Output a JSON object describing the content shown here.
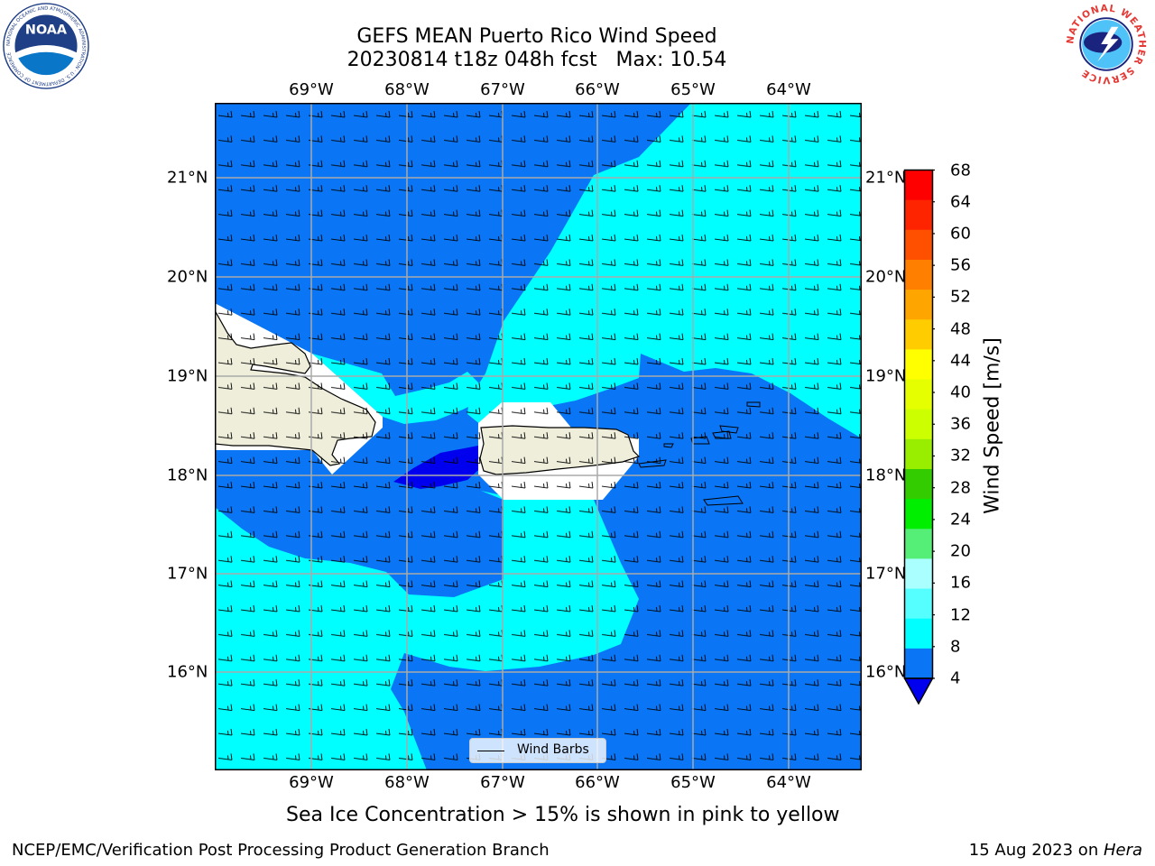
{
  "header": {
    "title_line1": "GEFS MEAN Puerto Rico Wind Speed",
    "title_line2": "20230814 t18z 048h fcst   Max: 10.54"
  },
  "logos": {
    "left": {
      "text": "NOAA",
      "ring_text": "NATIONAL OCEANIC AND ATMOSPHERIC ADMINISTRATION · U.S. DEPARTMENT OF COMMERCE"
    },
    "right": {
      "ring_text": "NATIONAL WEATHER SERVICE"
    }
  },
  "map": {
    "lon_labels_top": [
      "69°W",
      "68°W",
      "67°W",
      "66°W",
      "65°W",
      "64°W"
    ],
    "lon_labels_bottom": [
      "69°W",
      "68°W",
      "67°W",
      "66°W",
      "65°W",
      "64°W"
    ],
    "lat_labels_left": [
      "21°N",
      "20°N",
      "19°N",
      "18°N",
      "17°N",
      "16°N"
    ],
    "lat_labels_right": [
      "21°N",
      "20°N",
      "19°N",
      "18°N",
      "17°N",
      "16°N"
    ],
    "lon_values": [
      -69,
      -68,
      -67,
      -66,
      -65,
      -64
    ],
    "lat_values": [
      21,
      20,
      19,
      18,
      17,
      16
    ],
    "extent": {
      "lon_min": -70.0,
      "lon_max": -63.25,
      "lat_min": 15.0,
      "lat_max": 21.75
    },
    "colors": {
      "band_4_8": "#0a76f5",
      "band_8_12": "#00ffff",
      "band_0_4": "#0000ee",
      "land": "#efeedb"
    },
    "legend_label": "Wind Barbs"
  },
  "colorbar": {
    "ticks": [
      "68",
      "64",
      "60",
      "56",
      "52",
      "48",
      "44",
      "40",
      "36",
      "32",
      "28",
      "24",
      "20",
      "16",
      "12",
      "8",
      "4"
    ],
    "colors_top_to_bottom": [
      "#ff0000",
      "#ff2400",
      "#ff5000",
      "#ff7f00",
      "#ffa500",
      "#ffcc00",
      "#ffff00",
      "#e6ff00",
      "#ccff00",
      "#99ee00",
      "#33cc00",
      "#00ee00",
      "#55ee77",
      "#aaffff",
      "#55ffff",
      "#00ffff",
      "#0a76f5"
    ],
    "extend_color": "#0000ee",
    "label": "Wind Speed [m/s]"
  },
  "caption": "Sea Ice Concentration > 15% is shown in pink to yellow",
  "footer": {
    "left": "NCEP/EMC/Verification Post Processing Product Generation Branch",
    "right_prefix": "15 Aug 2023 on ",
    "right_host": "Hera"
  }
}
